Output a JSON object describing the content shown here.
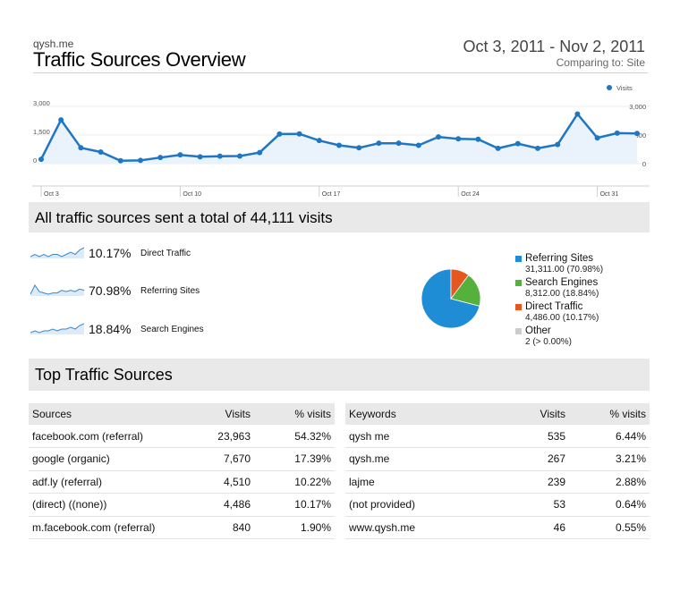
{
  "header": {
    "site": "qysh.me",
    "title": "Traffic Sources Overview",
    "date_range": "Oct 3, 2011 - Nov 2, 2011",
    "comparing": "Comparing to: Site"
  },
  "chart_data": {
    "type": "line",
    "legend": "Visits",
    "legend_position": "top-right",
    "y_ticks": [
      "3,000",
      "1,500",
      "0"
    ],
    "ylim": [
      0,
      3000
    ],
    "x_ticks": [
      "Oct 3",
      "Oct 10",
      "Oct 17",
      "Oct 24",
      "Oct 31"
    ],
    "x_tick_index": [
      0,
      7,
      14,
      21,
      28
    ],
    "color": "#1f77c4",
    "series": [
      {
        "values": [
          230,
          2290,
          830,
          610,
          150,
          170,
          320,
          460,
          360,
          390,
          400,
          580,
          1550,
          1560,
          1210,
          960,
          830,
          1070,
          1070,
          960,
          1400,
          1300,
          1280,
          800,
          1050,
          800,
          1000,
          2600,
          1350,
          1600,
          1580
        ]
      }
    ]
  },
  "summary": {
    "title": "All traffic sources sent a total of 44,111 visits",
    "sparks": [
      {
        "pct": "10.17%",
        "name": "Direct Traffic",
        "values": [
          3,
          4,
          3,
          4,
          3,
          4,
          4,
          3,
          4,
          5,
          4,
          6,
          7
        ]
      },
      {
        "pct": "70.98%",
        "name": "Referring Sites",
        "values": [
          2,
          9,
          4,
          3,
          2,
          3,
          3,
          5,
          4,
          5,
          4,
          6,
          5
        ]
      },
      {
        "pct": "18.84%",
        "name": "Search Engines",
        "values": [
          3,
          4,
          3,
          4,
          4,
          5,
          4,
          5,
          5,
          6,
          5,
          7,
          8
        ]
      }
    ]
  },
  "pie": {
    "slices": [
      {
        "name": "Referring Sites",
        "value": 31311,
        "label": "31,311.00 (70.98%)",
        "color": "#1f8dd6"
      },
      {
        "name": "Search Engines",
        "value": 8312,
        "label": "8,312.00 (18.84%)",
        "color": "#56b03c"
      },
      {
        "name": "Direct Traffic",
        "value": 4486,
        "label": "4,486.00 (10.17%)",
        "color": "#e5571f"
      },
      {
        "name": "Other",
        "value": 2,
        "label": "2 (> 0.00%)",
        "color": "#cccccc"
      }
    ]
  },
  "top": {
    "title": "Top Traffic Sources",
    "sources": {
      "headers": [
        "Sources",
        "Visits",
        "% visits"
      ],
      "rows": [
        [
          "facebook.com (referral)",
          "23,963",
          "54.32%"
        ],
        [
          "google (organic)",
          "7,670",
          "17.39%"
        ],
        [
          "adf.ly (referral)",
          "4,510",
          "10.22%"
        ],
        [
          "(direct) ((none))",
          "4,486",
          "10.17%"
        ],
        [
          "m.facebook.com (referral)",
          "840",
          "1.90%"
        ]
      ]
    },
    "keywords": {
      "headers": [
        "Keywords",
        "Visits",
        "% visits"
      ],
      "rows": [
        [
          "qysh me",
          "535",
          "6.44%"
        ],
        [
          "qysh.me",
          "267",
          "3.21%"
        ],
        [
          "lajme",
          "239",
          "2.88%"
        ],
        [
          "(not provided)",
          "53",
          "0.64%"
        ],
        [
          "www.qysh.me",
          "46",
          "0.55%"
        ]
      ]
    }
  }
}
